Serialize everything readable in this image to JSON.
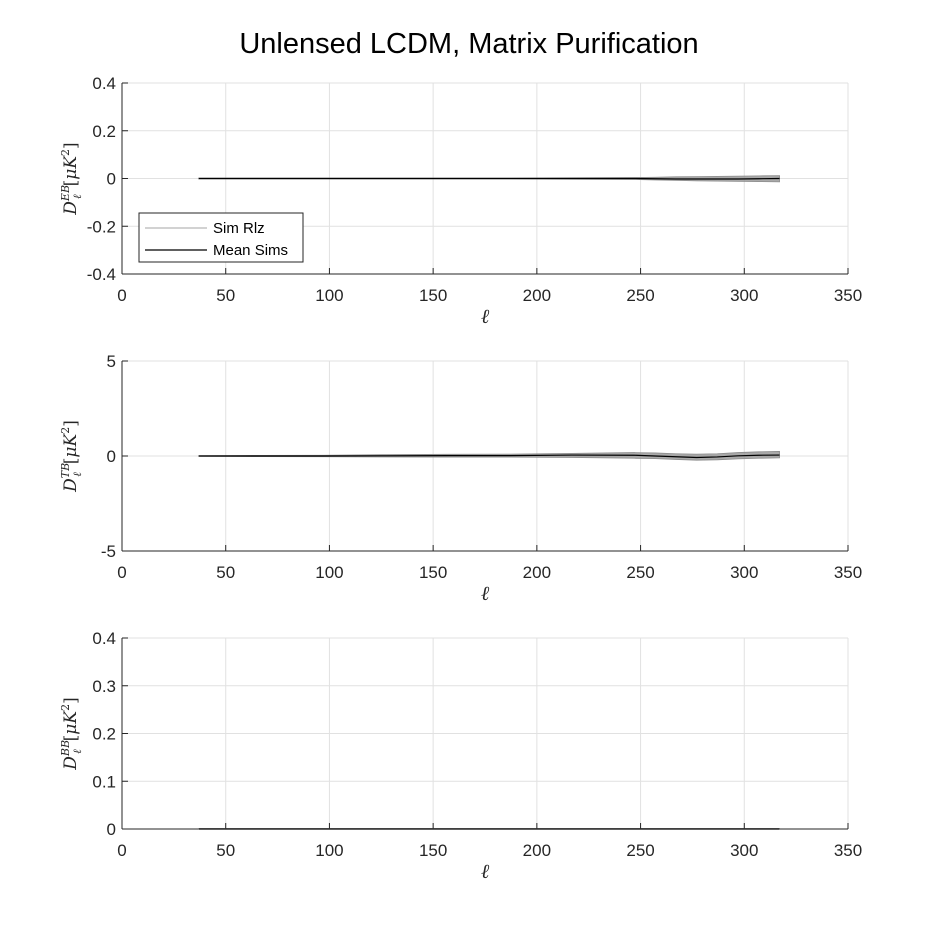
{
  "figure": {
    "title": "Unlensed LCDM, Matrix Purification"
  },
  "chart_data": [
    {
      "type": "line",
      "panel": "EB",
      "title": "",
      "xlabel": "ℓ",
      "ylabel": {
        "base": "D",
        "sup": "EB",
        "sub": "ℓ",
        "unit_prefix": "[",
        "unit_mu": "μ",
        "unit_K": "K",
        "unit_exp": "2",
        "unit_suffix": "]"
      },
      "xlim": [
        0,
        350
      ],
      "ylim": [
        -0.4,
        0.4
      ],
      "xticks": [
        0,
        50,
        100,
        150,
        200,
        250,
        300,
        350
      ],
      "yticks": [
        -0.4,
        -0.2,
        0,
        0.2,
        0.4
      ],
      "xtick_labels": [
        "0",
        "50",
        "100",
        "150",
        "200",
        "250",
        "300",
        "350"
      ],
      "ytick_labels": [
        "-0.4",
        "-0.2",
        "0",
        "0.2",
        "0.4"
      ],
      "grid": true,
      "legend": {
        "placement": "bottom-left",
        "entries": [
          "Sim Rlz",
          "Mean Sims"
        ]
      },
      "x": [
        37,
        67,
        97,
        127,
        157,
        187,
        217,
        247,
        257,
        267,
        277,
        287,
        297,
        307,
        317
      ],
      "series": [
        {
          "name": "Sim Rlz",
          "style": "band",
          "color": "#8c8c8c",
          "lower": [
            -0.002,
            -0.002,
            -0.002,
            -0.002,
            -0.002,
            -0.002,
            -0.003,
            -0.004,
            -0.006,
            -0.008,
            -0.01,
            -0.011,
            -0.012,
            -0.013,
            -0.014
          ],
          "upper": [
            0.002,
            0.002,
            0.002,
            0.002,
            0.002,
            0.002,
            0.003,
            0.004,
            0.005,
            0.007,
            0.008,
            0.009,
            0.01,
            0.011,
            0.012
          ]
        },
        {
          "name": "Mean Sims",
          "style": "line",
          "color": "#000000",
          "values": [
            0,
            0,
            0,
            0,
            0,
            0,
            0,
            0,
            -0.001,
            -0.002,
            -0.002,
            -0.002,
            -0.002,
            -0.001,
            0
          ]
        }
      ]
    },
    {
      "type": "line",
      "panel": "TB",
      "title": "",
      "xlabel": "ℓ",
      "ylabel": {
        "base": "D",
        "sup": "TB",
        "sub": "ℓ",
        "unit_prefix": "[",
        "unit_mu": "μ",
        "unit_K": "K",
        "unit_exp": "2",
        "unit_suffix": "]"
      },
      "xlim": [
        0,
        350
      ],
      "ylim": [
        -5,
        5
      ],
      "xticks": [
        0,
        50,
        100,
        150,
        200,
        250,
        300,
        350
      ],
      "yticks": [
        -5,
        0,
        5
      ],
      "xtick_labels": [
        "0",
        "50",
        "100",
        "150",
        "200",
        "250",
        "300",
        "350"
      ],
      "ytick_labels": [
        "-5",
        "0",
        "5"
      ],
      "grid": true,
      "x": [
        37,
        67,
        97,
        127,
        157,
        187,
        217,
        247,
        257,
        267,
        277,
        287,
        297,
        307,
        317
      ],
      "series": [
        {
          "name": "Sim Rlz",
          "style": "band",
          "color": "#8c8c8c",
          "lower": [
            -0.02,
            -0.03,
            -0.04,
            -0.05,
            -0.06,
            -0.06,
            -0.08,
            -0.12,
            -0.14,
            -0.18,
            -0.22,
            -0.2,
            -0.15,
            -0.12,
            -0.1
          ],
          "upper": [
            0.02,
            0.03,
            0.04,
            0.07,
            0.09,
            0.1,
            0.14,
            0.18,
            0.16,
            0.12,
            0.1,
            0.12,
            0.18,
            0.22,
            0.24
          ]
        },
        {
          "name": "Mean Sims",
          "style": "line",
          "color": "#000000",
          "values": [
            0,
            0,
            0,
            0.01,
            0.02,
            0.02,
            0.05,
            0.04,
            0.0,
            -0.04,
            -0.08,
            -0.05,
            0.01,
            0.04,
            0.05
          ]
        }
      ]
    },
    {
      "type": "line",
      "panel": "BB",
      "title": "",
      "xlabel": "ℓ",
      "ylabel": {
        "base": "D",
        "sup": "BB",
        "sub": "ℓ",
        "unit_prefix": "[",
        "unit_mu": "μ",
        "unit_K": "K",
        "unit_exp": "2",
        "unit_suffix": "]"
      },
      "xlim": [
        0,
        350
      ],
      "ylim": [
        0,
        0.4
      ],
      "xticks": [
        0,
        50,
        100,
        150,
        200,
        250,
        300,
        350
      ],
      "yticks": [
        0,
        0.1,
        0.2,
        0.3,
        0.4
      ],
      "xtick_labels": [
        "0",
        "50",
        "100",
        "150",
        "200",
        "250",
        "300",
        "350"
      ],
      "ytick_labels": [
        "0",
        "0.1",
        "0.2",
        "0.3",
        "0.4"
      ],
      "grid": true,
      "x": [
        37,
        67,
        97,
        127,
        157,
        187,
        217,
        247,
        257,
        267,
        277,
        287,
        297,
        307,
        317
      ],
      "series": [
        {
          "name": "Sim Rlz",
          "style": "band",
          "color": "#8c8c8c",
          "lower": [
            0,
            0,
            0,
            0,
            0,
            0,
            0,
            0,
            0,
            0,
            0,
            0,
            0,
            0,
            0
          ],
          "upper": [
            0.001,
            0.001,
            0.001,
            0.001,
            0.001,
            0.001,
            0.001,
            0.001,
            0.001,
            0.001,
            0.001,
            0.001,
            0.001,
            0.001,
            0.001
          ]
        },
        {
          "name": "Mean Sims",
          "style": "line",
          "color": "#000000",
          "values": [
            0,
            0,
            0,
            0,
            0,
            0,
            0,
            0,
            0,
            0,
            0,
            0,
            0,
            0,
            0
          ]
        }
      ]
    }
  ]
}
